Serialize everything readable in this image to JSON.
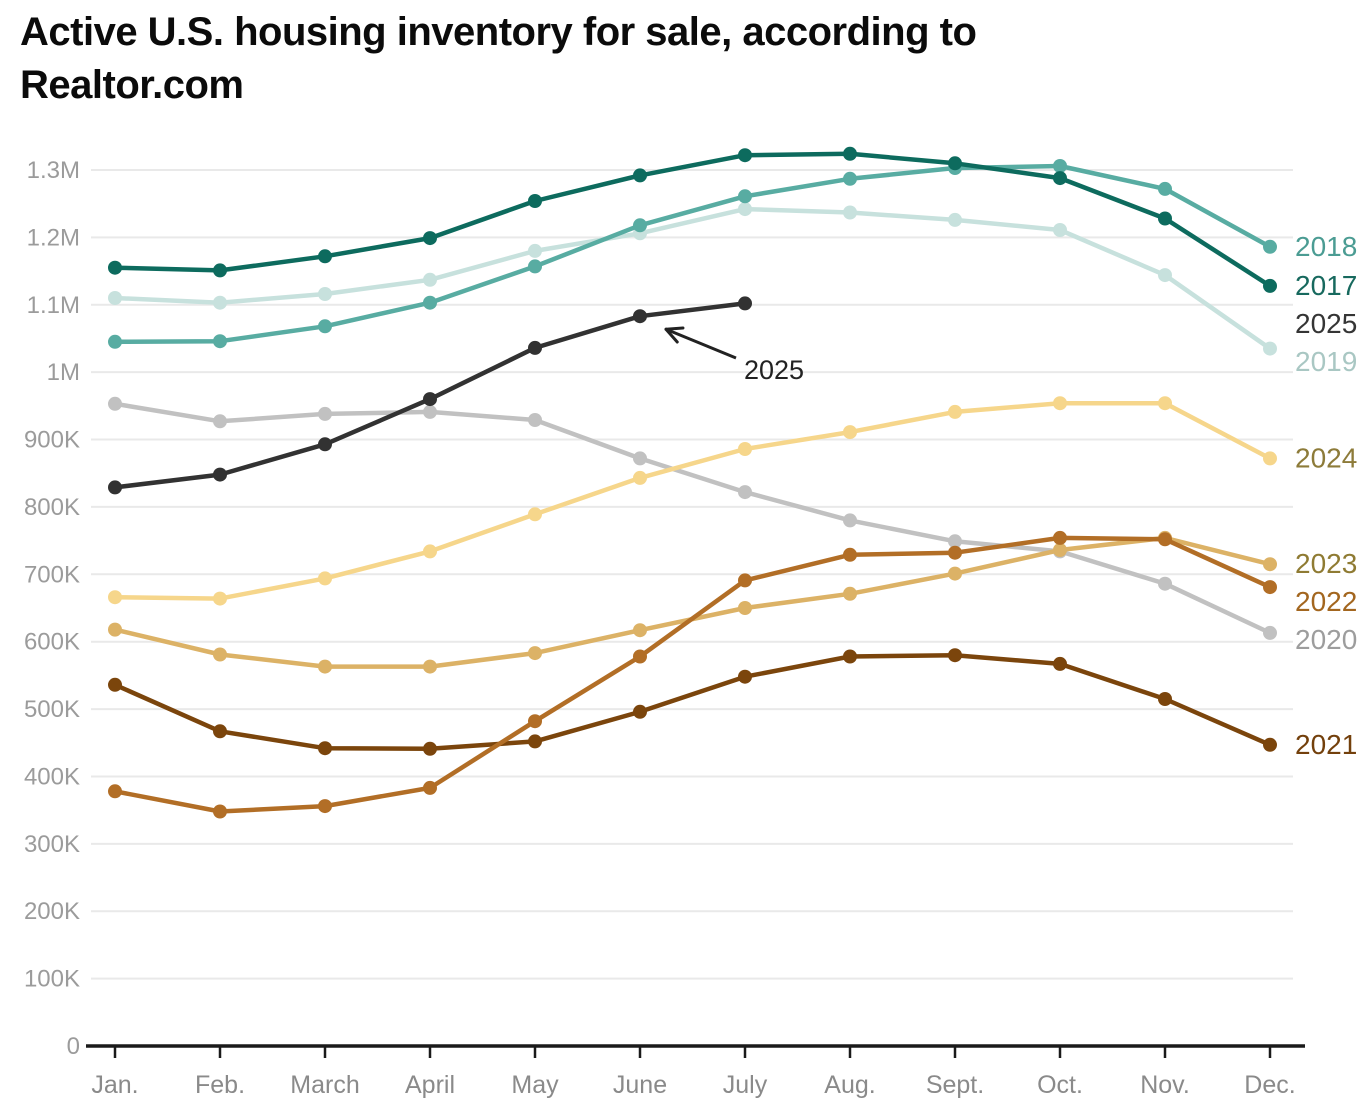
{
  "title": "Active U.S. housing inventory for sale, according to Realtor.com",
  "annotation": {
    "text": "2025",
    "target_series": "2025",
    "target_month": "June"
  },
  "chart_data": {
    "type": "line",
    "title": "Active U.S. housing inventory for sale, according to Realtor.com",
    "source_note": "Realtor.com",
    "x_categories": [
      "Jan.",
      "Feb.",
      "March",
      "April",
      "May",
      "June",
      "July",
      "Aug.",
      "Sept.",
      "Oct.",
      "Nov.",
      "Dec."
    ],
    "y_axis": {
      "range": [
        0,
        1360000
      ],
      "ticks": [
        {
          "label": "0",
          "value": 0
        },
        {
          "label": "100K",
          "value": 100000
        },
        {
          "label": "200K",
          "value": 200000
        },
        {
          "label": "300K",
          "value": 300000
        },
        {
          "label": "400K",
          "value": 400000
        },
        {
          "label": "500K",
          "value": 500000
        },
        {
          "label": "600K",
          "value": 600000
        },
        {
          "label": "700K",
          "value": 700000
        },
        {
          "label": "800K",
          "value": 800000
        },
        {
          "label": "900K",
          "value": 900000
        },
        {
          "label": "1M",
          "value": 1000000
        },
        {
          "label": "1.1M",
          "value": 1100000
        },
        {
          "label": "1.2M",
          "value": 1200000
        },
        {
          "label": "1.3M",
          "value": 1300000
        }
      ]
    },
    "grid": true,
    "legend_position": "right-edge-year-labels",
    "series": [
      {
        "name": "2017",
        "color": "#0d6b5e",
        "label_color": "#17695e",
        "values": [
          1155000,
          1151000,
          1172000,
          1199000,
          1254000,
          1292000,
          1322000,
          1324000,
          1310000,
          1288000,
          1228000,
          1128000
        ]
      },
      {
        "name": "2018",
        "color": "#58aca2",
        "label_color": "#4b9c93",
        "values": [
          1045000,
          1046000,
          1068000,
          1103000,
          1157000,
          1218000,
          1261000,
          1287000,
          1303000,
          1306000,
          1272000,
          1186000
        ]
      },
      {
        "name": "2019",
        "color": "#c7e1dd",
        "label_color": "#a9c7c3",
        "values": [
          1110000,
          1103000,
          1116000,
          1137000,
          1180000,
          1206000,
          1242000,
          1237000,
          1226000,
          1211000,
          1144000,
          1035000
        ]
      },
      {
        "name": "2020",
        "color": "#c1c1c1",
        "label_color": "#9d9d9d",
        "values": [
          953000,
          927000,
          938000,
          941000,
          929000,
          872000,
          822000,
          780000,
          749000,
          734000,
          686000,
          613000
        ]
      },
      {
        "name": "2021",
        "color": "#7b450c",
        "label_color": "#73400c",
        "values": [
          536000,
          467000,
          442000,
          441000,
          452000,
          496000,
          548000,
          578000,
          580000,
          567000,
          515000,
          447000
        ]
      },
      {
        "name": "2022",
        "color": "#b26e26",
        "label_color": "#a3661f",
        "values": [
          378000,
          348000,
          356000,
          383000,
          482000,
          578000,
          691000,
          729000,
          732000,
          754000,
          752000,
          681000
        ]
      },
      {
        "name": "2023",
        "color": "#dcb266",
        "label_color": "#8f7b33",
        "values": [
          618000,
          581000,
          563000,
          563000,
          583000,
          617000,
          650000,
          671000,
          701000,
          736000,
          754000,
          715000
        ]
      },
      {
        "name": "2024",
        "color": "#f6d68b",
        "label_color": "#8d7b39",
        "values": [
          666000,
          664000,
          694000,
          734000,
          789000,
          843000,
          886000,
          911000,
          941000,
          954000,
          954000,
          872000
        ]
      },
      {
        "name": "2025",
        "color": "#323232",
        "label_color": "#353535",
        "values": [
          829000,
          848000,
          893000,
          960000,
          1036000,
          1083000,
          1102000
        ]
      }
    ]
  }
}
